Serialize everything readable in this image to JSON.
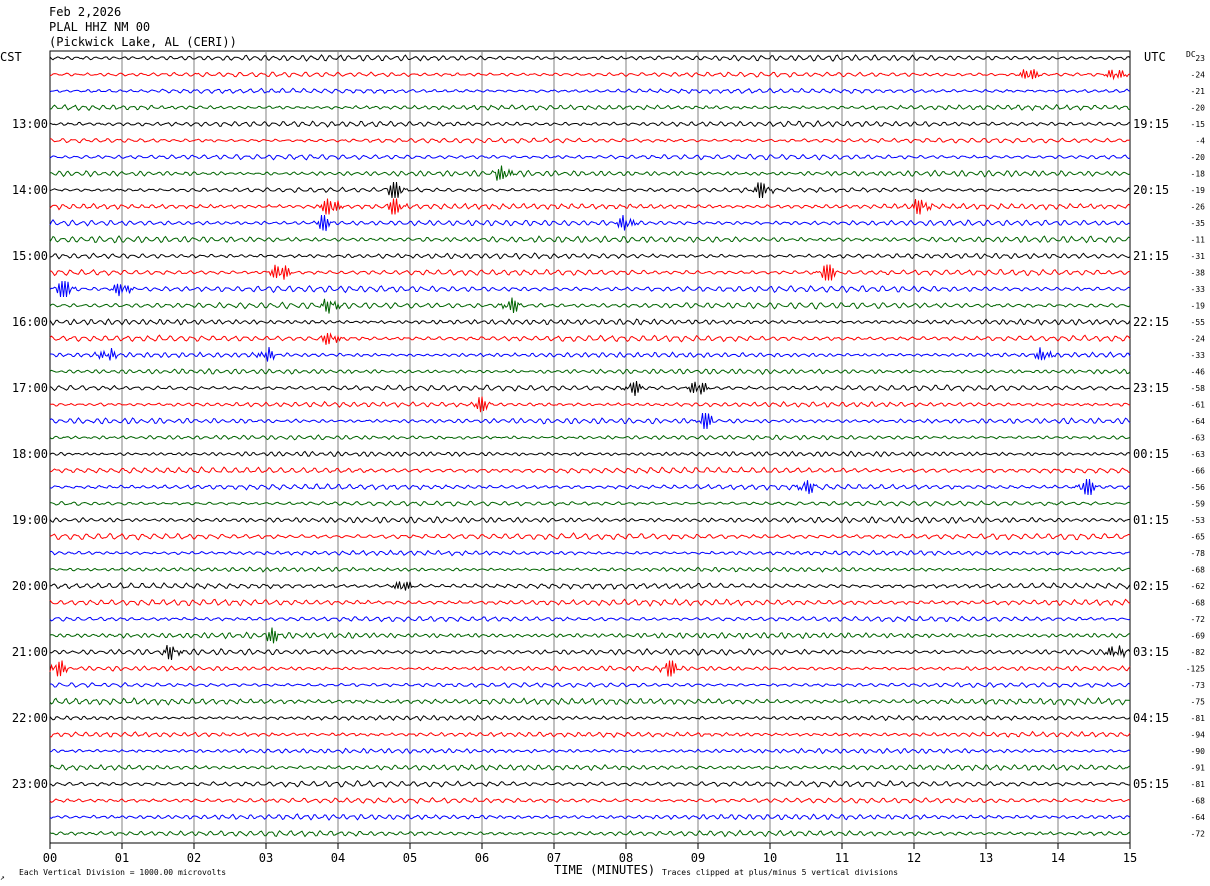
{
  "header": {
    "date": "Feb 2,2026",
    "station": "PLAL HHZ NM 00",
    "location": "(Pickwick Lake, AL (CERI))"
  },
  "labels": {
    "left_tz": "CST",
    "right_tz": "UTC",
    "dc_header": "DC",
    "x_title": "TIME (MINUTES)",
    "scale_note": "Each Vertical Division = 1000.00 microvolts",
    "clip_note": "Traces clipped at plus/minus 5 vertical divisions",
    "corner_mark": "↗"
  },
  "chart_data": {
    "type": "line",
    "subtype": "helicorder",
    "x_range": [
      0,
      15
    ],
    "x_ticks": [
      "00",
      "01",
      "02",
      "03",
      "04",
      "05",
      "06",
      "07",
      "08",
      "09",
      "10",
      "11",
      "12",
      "13",
      "14",
      "15"
    ],
    "rows_per_hour": 4,
    "cst_hour_labels": [
      "13:00",
      "14:00",
      "15:00",
      "16:00",
      "17:00",
      "18:00",
      "19:00",
      "20:00",
      "21:00",
      "22:00",
      "23:00"
    ],
    "utc_hour_labels": [
      "19:15",
      "20:15",
      "21:15",
      "22:15",
      "23:15",
      "00:15",
      "01:15",
      "02:15",
      "03:15",
      "04:15",
      "05:15"
    ],
    "dc_offsets": [
      23,
      -24,
      -21,
      -20,
      -15,
      -4,
      -20,
      -18,
      -19,
      -26,
      -35,
      -11,
      -31,
      -38,
      -33,
      -19,
      -55,
      -24,
      -33,
      -46,
      -58,
      -61,
      -64,
      -63,
      -63,
      -66,
      -56,
      -59,
      -53,
      -65,
      -78,
      -68,
      -62,
      -68,
      -72,
      -69,
      -82,
      -125,
      -73,
      -75,
      -81,
      -94,
      -90,
      -91,
      -81,
      -68,
      -64,
      -72
    ],
    "trace_colors": [
      "#000000",
      "#ff0000",
      "#0000ff",
      "#006400"
    ],
    "events": [
      {
        "row": 1,
        "minute": 13.6,
        "amp": 1.4
      },
      {
        "row": 1,
        "minute": 14.8,
        "amp": 1.2
      },
      {
        "row": 7,
        "minute": 6.3,
        "amp": 1.5
      },
      {
        "row": 8,
        "minute": 4.8,
        "amp": 2.0
      },
      {
        "row": 8,
        "minute": 9.9,
        "amp": 1.5
      },
      {
        "row": 9,
        "minute": 3.9,
        "amp": 2.2
      },
      {
        "row": 9,
        "minute": 4.8,
        "amp": 1.6
      },
      {
        "row": 9,
        "minute": 12.1,
        "amp": 1.6
      },
      {
        "row": 10,
        "minute": 3.8,
        "amp": 1.3
      },
      {
        "row": 10,
        "minute": 8.0,
        "amp": 1.5
      },
      {
        "row": 13,
        "minute": 3.2,
        "amp": 2.0
      },
      {
        "row": 13,
        "minute": 10.8,
        "amp": 2.2
      },
      {
        "row": 14,
        "minute": 0.2,
        "amp": 2.6
      },
      {
        "row": 14,
        "minute": 1.0,
        "amp": 1.4
      },
      {
        "row": 15,
        "minute": 3.9,
        "amp": 1.4
      },
      {
        "row": 15,
        "minute": 6.4,
        "amp": 1.3
      },
      {
        "row": 17,
        "minute": 3.9,
        "amp": 1.3
      },
      {
        "row": 18,
        "minute": 0.8,
        "amp": 1.2
      },
      {
        "row": 18,
        "minute": 3.0,
        "amp": 1.2
      },
      {
        "row": 18,
        "minute": 13.8,
        "amp": 1.2
      },
      {
        "row": 20,
        "minute": 8.1,
        "amp": 1.3
      },
      {
        "row": 20,
        "minute": 9.0,
        "amp": 1.6
      },
      {
        "row": 21,
        "minute": 6.0,
        "amp": 1.2
      },
      {
        "row": 22,
        "minute": 9.1,
        "amp": 1.6
      },
      {
        "row": 26,
        "minute": 10.5,
        "amp": 1.2
      },
      {
        "row": 26,
        "minute": 14.4,
        "amp": 1.8
      },
      {
        "row": 32,
        "minute": 4.9,
        "amp": 1.2
      },
      {
        "row": 35,
        "minute": 3.1,
        "amp": 1.2
      },
      {
        "row": 36,
        "minute": 1.7,
        "amp": 1.3
      },
      {
        "row": 36,
        "minute": 14.8,
        "amp": 1.2
      },
      {
        "row": 37,
        "minute": 0.1,
        "amp": 1.6
      },
      {
        "row": 37,
        "minute": 8.6,
        "amp": 1.6
      }
    ]
  }
}
